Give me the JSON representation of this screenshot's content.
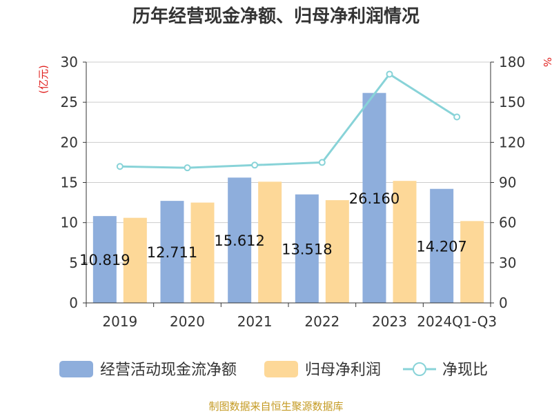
{
  "chart_data": {
    "type": "bar",
    "title": "历年经营现金净额、归母净利润情况",
    "categories": [
      "2019",
      "2020",
      "2021",
      "2022",
      "2023",
      "2024Q1-Q3"
    ],
    "y_left": {
      "unit": "(亿元)",
      "min": 0,
      "max": 30,
      "ticks": [
        "0",
        "5",
        "10",
        "15",
        "20",
        "25",
        "30"
      ]
    },
    "y_right": {
      "unit": "%",
      "min": 0,
      "max": 180,
      "ticks": [
        "0",
        "30",
        "60",
        "90",
        "120",
        "150",
        "180"
      ]
    },
    "series": [
      {
        "name": "经营活动现金流净额",
        "type": "bar",
        "axis": "left",
        "color": "#8eaedc",
        "values": [
          10.819,
          12.711,
          15.612,
          13.518,
          26.16,
          14.207
        ],
        "labels": [
          "10.819",
          "12.711",
          "15.612",
          "13.518",
          "26.160",
          "14.207"
        ]
      },
      {
        "name": "归母净利润",
        "type": "bar",
        "axis": "left",
        "color": "#fdd898",
        "values": [
          10.6,
          12.5,
          15.1,
          12.8,
          15.2,
          10.2
        ]
      },
      {
        "name": "净现比",
        "type": "line",
        "axis": "right",
        "color": "#88d3d8",
        "values": [
          102,
          101,
          103,
          105,
          171,
          139
        ]
      }
    ],
    "grid": true,
    "legend_position": "bottom",
    "source": "制图数据来自恒生聚源数据库"
  }
}
